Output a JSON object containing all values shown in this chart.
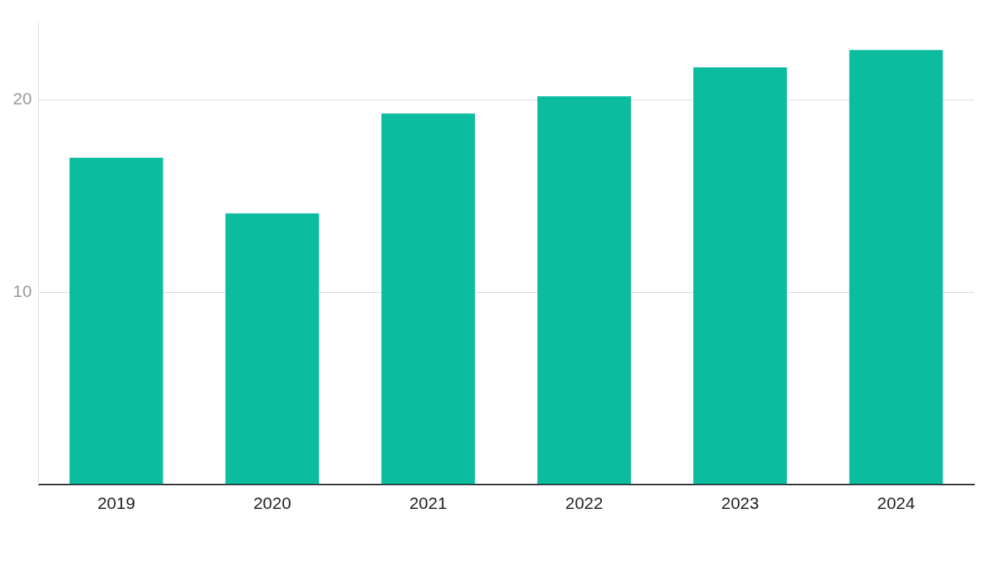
{
  "chart_data": {
    "type": "bar",
    "categories": [
      "2019",
      "2020",
      "2021",
      "2022",
      "2023",
      "2024"
    ],
    "values": [
      17.0,
      14.1,
      19.3,
      20.2,
      21.7,
      22.6
    ],
    "color": "#0bbc9f",
    "ylim": [
      0,
      24
    ],
    "yticks": [
      {
        "value": 0,
        "label": null
      },
      10,
      20
    ],
    "grid": "y",
    "legend": false
  }
}
